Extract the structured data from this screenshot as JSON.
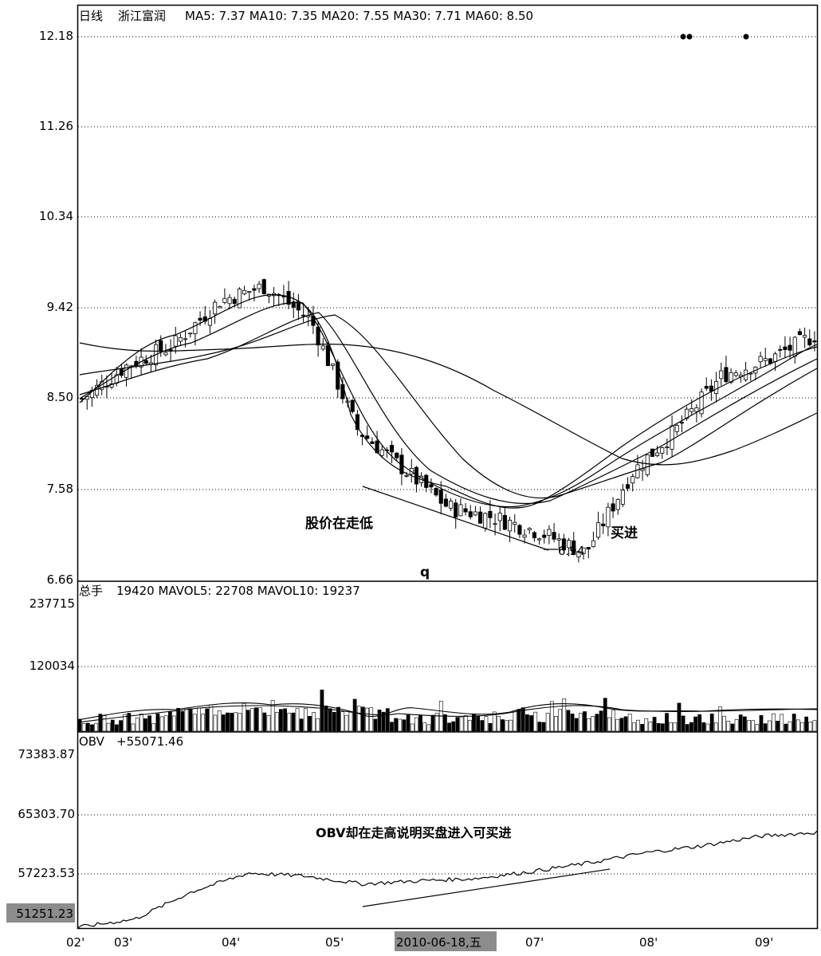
{
  "chart_data": [
    {
      "panel": "price",
      "type": "candlestick",
      "header": {
        "period": "日线",
        "stock": "浙江富润",
        "ma_text": "MA5: 7.37  MA10: 7.35  MA20: 7.55  MA30: 7.71  MA60: 8.50"
      },
      "y_ticks": [
        "12.18",
        "11.26",
        "10.34",
        "9.42",
        "8.50",
        "7.58",
        "6.66"
      ],
      "ylim": [
        6.66,
        12.18
      ],
      "annotations": {
        "falling": "股价在走低",
        "buy": "买进",
        "low_marker": "6.94",
        "q_mark": "q"
      },
      "low_value": 6.94,
      "ma_last": {
        "MA5": 7.37,
        "MA10": 7.35,
        "MA20": 7.55,
        "MA30": 7.71,
        "MA60": 8.5
      },
      "price_path": [
        [
          "02'",
          8.5
        ],
        [
          "03'",
          8.85
        ],
        [
          "03'",
          9.05
        ],
        [
          "04'",
          9.5
        ],
        [
          "04'",
          9.65
        ],
        [
          "05'",
          9.3
        ],
        [
          "05'",
          8.2
        ],
        [
          "05'",
          7.8
        ],
        [
          "06'",
          7.4
        ],
        [
          "06'",
          7.3
        ],
        [
          "07'",
          7.15
        ],
        [
          "07'",
          6.94
        ],
        [
          "07'",
          7.75
        ],
        [
          "08'",
          8.2
        ],
        [
          "08'",
          8.75
        ],
        [
          "09'",
          8.9
        ],
        [
          "09'",
          9.15
        ]
      ]
    },
    {
      "panel": "volume",
      "type": "bar",
      "header": {
        "label": "总手",
        "text": "19420  MAVOL5: 22708  MAVOL10: 19237"
      },
      "y_ticks": [
        "237715",
        "120034"
      ],
      "ylim": [
        0,
        237715
      ],
      "values": {
        "volume": 19420,
        "MAVOL5": 22708,
        "MAVOL10": 19237
      }
    },
    {
      "panel": "obv",
      "type": "line",
      "header": {
        "label": "OBV",
        "text": "+55071.46"
      },
      "y_ticks": [
        "73383.87",
        "65303.70",
        "57223.53"
      ],
      "current_label": "51251.23",
      "annotation": "OBV却在走高说明买盘进入可买进",
      "ylim": [
        51251.23,
        73383.87
      ],
      "obv_path": [
        [
          "02'",
          51251.23
        ],
        [
          "03'",
          52300
        ],
        [
          "04'",
          55800
        ],
        [
          "04'",
          58200
        ],
        [
          "05'",
          57800
        ],
        [
          "05'",
          56800
        ],
        [
          "06'",
          57200
        ],
        [
          "06'",
          57500
        ],
        [
          "07'",
          58400
        ],
        [
          "07'",
          59500
        ],
        [
          "08'",
          60800
        ],
        [
          "08'",
          61700
        ],
        [
          "09'",
          62900
        ],
        [
          "09'",
          63400
        ]
      ]
    }
  ],
  "x_axis": {
    "ticks": [
      "02'",
      "03'",
      "04'",
      "05'",
      "07'",
      "08'",
      "09'"
    ],
    "cursor_label": "2010-06-18,五"
  }
}
